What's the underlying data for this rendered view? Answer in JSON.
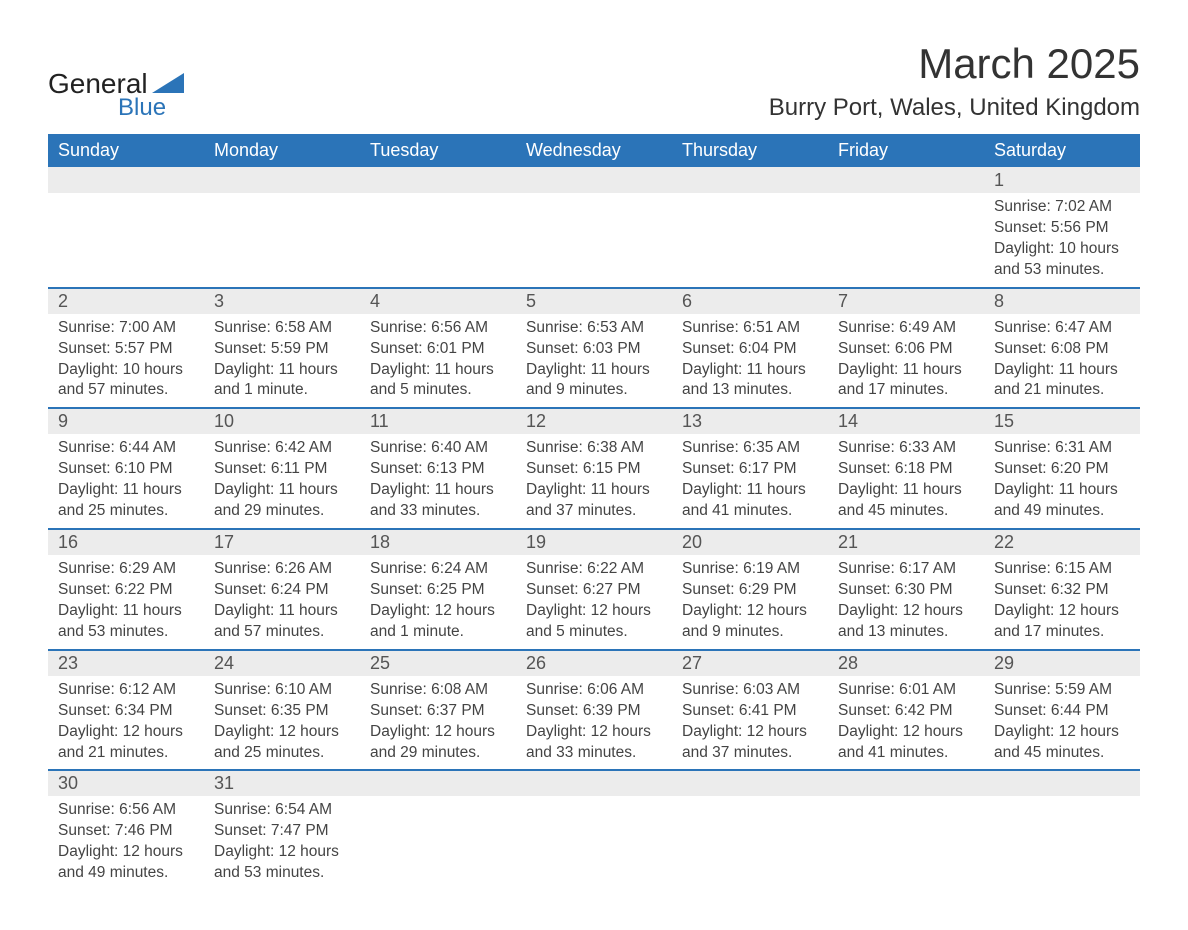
{
  "brand": {
    "name1": "General",
    "name2": "Blue",
    "accent": "#2b74b8"
  },
  "title": "March 2025",
  "location": "Burry Port, Wales, United Kingdom",
  "colors": {
    "header_bg": "#2b74b8",
    "header_text": "#ffffff",
    "daynum_bg": "#ececec",
    "row_divider": "#2b74b8",
    "body_text": "#444444",
    "page_bg": "#ffffff"
  },
  "weekdays": [
    "Sunday",
    "Monday",
    "Tuesday",
    "Wednesday",
    "Thursday",
    "Friday",
    "Saturday"
  ],
  "weeks": [
    [
      null,
      null,
      null,
      null,
      null,
      null,
      {
        "n": "1",
        "sr": "Sunrise: 7:02 AM",
        "ss": "Sunset: 5:56 PM",
        "d1": "Daylight: 10 hours",
        "d2": "and 53 minutes."
      }
    ],
    [
      {
        "n": "2",
        "sr": "Sunrise: 7:00 AM",
        "ss": "Sunset: 5:57 PM",
        "d1": "Daylight: 10 hours",
        "d2": "and 57 minutes."
      },
      {
        "n": "3",
        "sr": "Sunrise: 6:58 AM",
        "ss": "Sunset: 5:59 PM",
        "d1": "Daylight: 11 hours",
        "d2": "and 1 minute."
      },
      {
        "n": "4",
        "sr": "Sunrise: 6:56 AM",
        "ss": "Sunset: 6:01 PM",
        "d1": "Daylight: 11 hours",
        "d2": "and 5 minutes."
      },
      {
        "n": "5",
        "sr": "Sunrise: 6:53 AM",
        "ss": "Sunset: 6:03 PM",
        "d1": "Daylight: 11 hours",
        "d2": "and 9 minutes."
      },
      {
        "n": "6",
        "sr": "Sunrise: 6:51 AM",
        "ss": "Sunset: 6:04 PM",
        "d1": "Daylight: 11 hours",
        "d2": "and 13 minutes."
      },
      {
        "n": "7",
        "sr": "Sunrise: 6:49 AM",
        "ss": "Sunset: 6:06 PM",
        "d1": "Daylight: 11 hours",
        "d2": "and 17 minutes."
      },
      {
        "n": "8",
        "sr": "Sunrise: 6:47 AM",
        "ss": "Sunset: 6:08 PM",
        "d1": "Daylight: 11 hours",
        "d2": "and 21 minutes."
      }
    ],
    [
      {
        "n": "9",
        "sr": "Sunrise: 6:44 AM",
        "ss": "Sunset: 6:10 PM",
        "d1": "Daylight: 11 hours",
        "d2": "and 25 minutes."
      },
      {
        "n": "10",
        "sr": "Sunrise: 6:42 AM",
        "ss": "Sunset: 6:11 PM",
        "d1": "Daylight: 11 hours",
        "d2": "and 29 minutes."
      },
      {
        "n": "11",
        "sr": "Sunrise: 6:40 AM",
        "ss": "Sunset: 6:13 PM",
        "d1": "Daylight: 11 hours",
        "d2": "and 33 minutes."
      },
      {
        "n": "12",
        "sr": "Sunrise: 6:38 AM",
        "ss": "Sunset: 6:15 PM",
        "d1": "Daylight: 11 hours",
        "d2": "and 37 minutes."
      },
      {
        "n": "13",
        "sr": "Sunrise: 6:35 AM",
        "ss": "Sunset: 6:17 PM",
        "d1": "Daylight: 11 hours",
        "d2": "and 41 minutes."
      },
      {
        "n": "14",
        "sr": "Sunrise: 6:33 AM",
        "ss": "Sunset: 6:18 PM",
        "d1": "Daylight: 11 hours",
        "d2": "and 45 minutes."
      },
      {
        "n": "15",
        "sr": "Sunrise: 6:31 AM",
        "ss": "Sunset: 6:20 PM",
        "d1": "Daylight: 11 hours",
        "d2": "and 49 minutes."
      }
    ],
    [
      {
        "n": "16",
        "sr": "Sunrise: 6:29 AM",
        "ss": "Sunset: 6:22 PM",
        "d1": "Daylight: 11 hours",
        "d2": "and 53 minutes."
      },
      {
        "n": "17",
        "sr": "Sunrise: 6:26 AM",
        "ss": "Sunset: 6:24 PM",
        "d1": "Daylight: 11 hours",
        "d2": "and 57 minutes."
      },
      {
        "n": "18",
        "sr": "Sunrise: 6:24 AM",
        "ss": "Sunset: 6:25 PM",
        "d1": "Daylight: 12 hours",
        "d2": "and 1 minute."
      },
      {
        "n": "19",
        "sr": "Sunrise: 6:22 AM",
        "ss": "Sunset: 6:27 PM",
        "d1": "Daylight: 12 hours",
        "d2": "and 5 minutes."
      },
      {
        "n": "20",
        "sr": "Sunrise: 6:19 AM",
        "ss": "Sunset: 6:29 PM",
        "d1": "Daylight: 12 hours",
        "d2": "and 9 minutes."
      },
      {
        "n": "21",
        "sr": "Sunrise: 6:17 AM",
        "ss": "Sunset: 6:30 PM",
        "d1": "Daylight: 12 hours",
        "d2": "and 13 minutes."
      },
      {
        "n": "22",
        "sr": "Sunrise: 6:15 AM",
        "ss": "Sunset: 6:32 PM",
        "d1": "Daylight: 12 hours",
        "d2": "and 17 minutes."
      }
    ],
    [
      {
        "n": "23",
        "sr": "Sunrise: 6:12 AM",
        "ss": "Sunset: 6:34 PM",
        "d1": "Daylight: 12 hours",
        "d2": "and 21 minutes."
      },
      {
        "n": "24",
        "sr": "Sunrise: 6:10 AM",
        "ss": "Sunset: 6:35 PM",
        "d1": "Daylight: 12 hours",
        "d2": "and 25 minutes."
      },
      {
        "n": "25",
        "sr": "Sunrise: 6:08 AM",
        "ss": "Sunset: 6:37 PM",
        "d1": "Daylight: 12 hours",
        "d2": "and 29 minutes."
      },
      {
        "n": "26",
        "sr": "Sunrise: 6:06 AM",
        "ss": "Sunset: 6:39 PM",
        "d1": "Daylight: 12 hours",
        "d2": "and 33 minutes."
      },
      {
        "n": "27",
        "sr": "Sunrise: 6:03 AM",
        "ss": "Sunset: 6:41 PM",
        "d1": "Daylight: 12 hours",
        "d2": "and 37 minutes."
      },
      {
        "n": "28",
        "sr": "Sunrise: 6:01 AM",
        "ss": "Sunset: 6:42 PM",
        "d1": "Daylight: 12 hours",
        "d2": "and 41 minutes."
      },
      {
        "n": "29",
        "sr": "Sunrise: 5:59 AM",
        "ss": "Sunset: 6:44 PM",
        "d1": "Daylight: 12 hours",
        "d2": "and 45 minutes."
      }
    ],
    [
      {
        "n": "30",
        "sr": "Sunrise: 6:56 AM",
        "ss": "Sunset: 7:46 PM",
        "d1": "Daylight: 12 hours",
        "d2": "and 49 minutes."
      },
      {
        "n": "31",
        "sr": "Sunrise: 6:54 AM",
        "ss": "Sunset: 7:47 PM",
        "d1": "Daylight: 12 hours",
        "d2": "and 53 minutes."
      },
      null,
      null,
      null,
      null,
      null
    ]
  ]
}
